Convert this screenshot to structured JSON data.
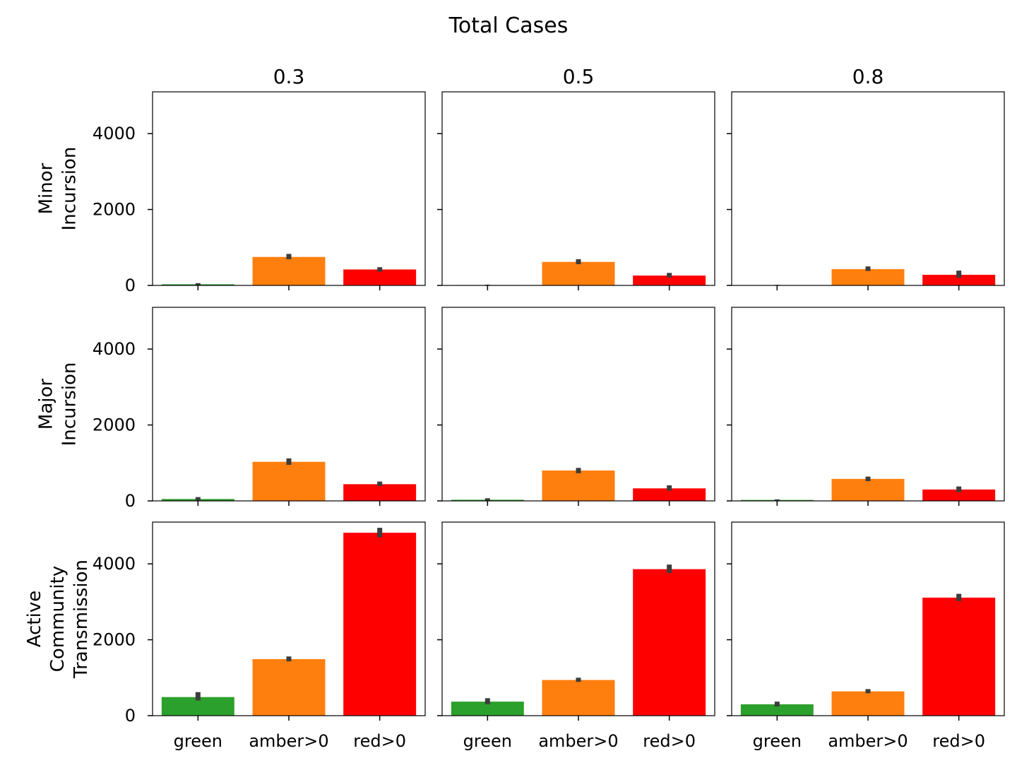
{
  "figure": {
    "title": "Total Cases"
  },
  "chart_data": {
    "type": "bar",
    "title": "Total Cases",
    "categories": [
      "green",
      "amber>0",
      "red>0"
    ],
    "ylim": [
      0,
      5100
    ],
    "yticks": [
      0,
      2000,
      4000
    ],
    "columns": [
      "0.3",
      "0.5",
      "0.8"
    ],
    "rows": [
      {
        "label": [
          "Minor",
          "Incursion"
        ]
      },
      {
        "label": [
          "Major",
          "Incursion"
        ]
      },
      {
        "label": [
          "Active",
          "Community",
          "Transmission"
        ]
      }
    ],
    "bar_colors": [
      "#2ca02c",
      "#ff7f0e",
      "#ff0000"
    ],
    "grid": false,
    "panels": [
      {
        "row": 0,
        "col": 0,
        "values": [
          30,
          750,
          420
        ],
        "errors": [
          [
            0,
            60
          ],
          [
            690,
            830
          ],
          [
            360,
            480
          ]
        ]
      },
      {
        "row": 0,
        "col": 1,
        "values": [
          10,
          620,
          260
        ],
        "errors": [
          [
            0,
            20
          ],
          [
            560,
            690
          ],
          [
            210,
            330
          ]
        ]
      },
      {
        "row": 0,
        "col": 2,
        "values": [
          8,
          430,
          280
        ],
        "errors": [
          [
            0,
            15
          ],
          [
            380,
            500
          ],
          [
            200,
            390
          ]
        ]
      },
      {
        "row": 1,
        "col": 0,
        "values": [
          50,
          1030,
          440
        ],
        "errors": [
          [
            10,
            100
          ],
          [
            950,
            1120
          ],
          [
            390,
            510
          ]
        ]
      },
      {
        "row": 1,
        "col": 1,
        "values": [
          30,
          800,
          330
        ],
        "errors": [
          [
            0,
            70
          ],
          [
            730,
            870
          ],
          [
            270,
            410
          ]
        ]
      },
      {
        "row": 1,
        "col": 2,
        "values": [
          25,
          580,
          300
        ],
        "errors": [
          [
            10,
            40
          ],
          [
            520,
            640
          ],
          [
            230,
            380
          ]
        ]
      },
      {
        "row": 2,
        "col": 0,
        "values": [
          490,
          1490,
          4820
        ],
        "errors": [
          [
            400,
            620
          ],
          [
            1430,
            1560
          ],
          [
            4700,
            4950
          ]
        ]
      },
      {
        "row": 2,
        "col": 1,
        "values": [
          370,
          940,
          3860
        ],
        "errors": [
          [
            300,
            460
          ],
          [
            890,
            1000
          ],
          [
            3760,
            3980
          ]
        ]
      },
      {
        "row": 2,
        "col": 2,
        "values": [
          300,
          640,
          3110
        ],
        "errors": [
          [
            240,
            370
          ],
          [
            590,
            700
          ],
          [
            3020,
            3210
          ]
        ]
      }
    ]
  }
}
